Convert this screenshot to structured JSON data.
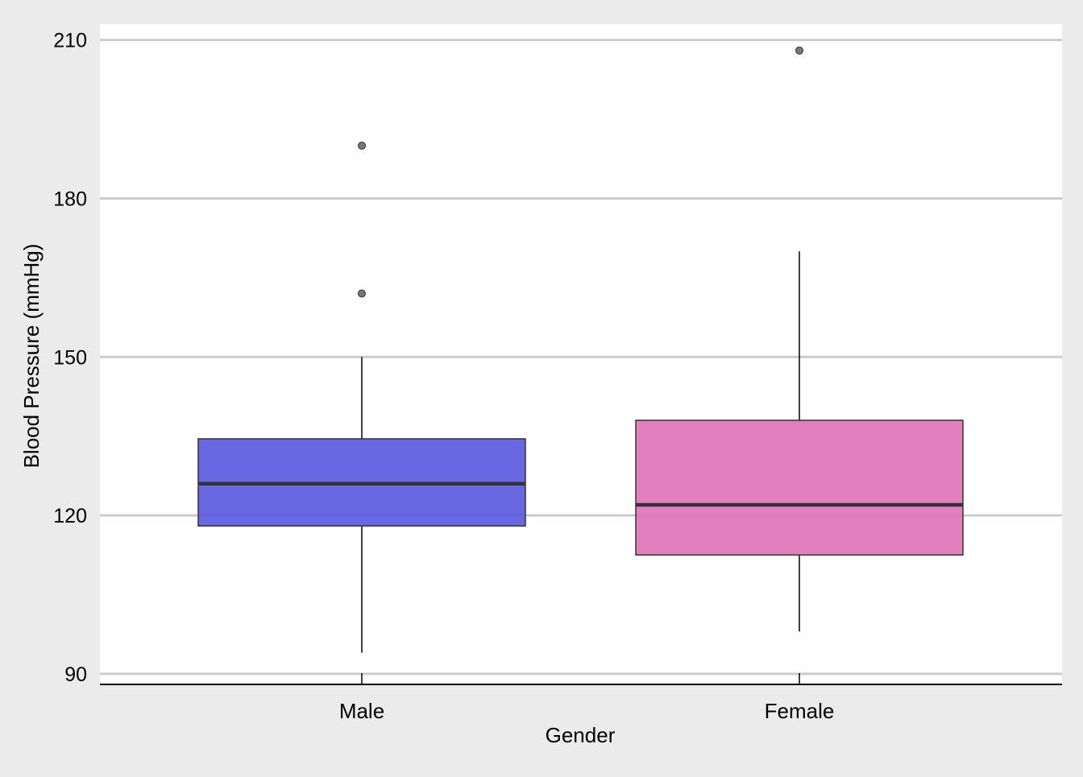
{
  "chart_data": {
    "type": "boxplot",
    "title": "",
    "xlabel": "Gender",
    "ylabel": "Blood Pressure (mmHg)",
    "ylim": [
      88,
      213
    ],
    "yticks": [
      90,
      120,
      150,
      180,
      210
    ],
    "grid": "horizontal",
    "legend": "none",
    "categories": [
      "Male",
      "Female"
    ],
    "boxes": [
      {
        "category": "Male",
        "color": "#5B5BDF",
        "whisker_low": 94,
        "q1": 118,
        "median": 126,
        "q3": 134.5,
        "whisker_high": 150,
        "outliers": [
          162,
          190
        ]
      },
      {
        "category": "Female",
        "color": "#DF74B8",
        "whisker_low": 98,
        "q1": 112.5,
        "median": 122,
        "q3": 138,
        "whisker_high": 170,
        "outliers": [
          208
        ]
      }
    ]
  }
}
